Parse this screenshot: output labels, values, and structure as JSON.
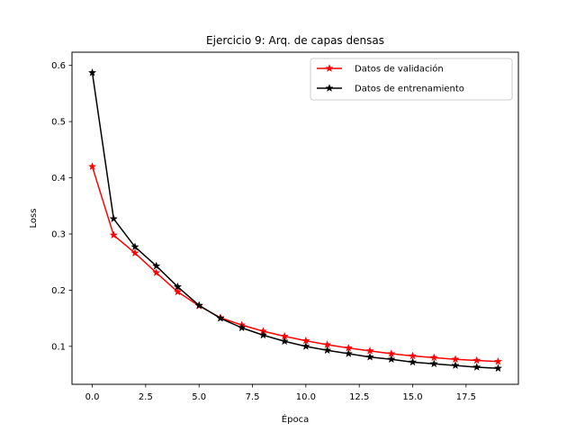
{
  "chart_data": {
    "type": "line",
    "title": "Ejercicio 9: Arq. de capas densas",
    "xlabel": "Época",
    "ylabel": "Loss",
    "xlim": [
      -0.95,
      19.95
    ],
    "ylim": [
      0.0325,
      0.6235
    ],
    "x_ticks": [
      0.0,
      2.5,
      5.0,
      7.5,
      10.0,
      12.5,
      15.0,
      17.5
    ],
    "x_tick_labels": [
      "0.0",
      "2.5",
      "5.0",
      "7.5",
      "10.0",
      "12.5",
      "15.0",
      "17.5"
    ],
    "y_ticks": [
      0.1,
      0.2,
      0.3,
      0.4,
      0.5,
      0.6
    ],
    "y_tick_labels": [
      "0.1",
      "0.2",
      "0.3",
      "0.4",
      "0.5",
      "0.6"
    ],
    "grid": false,
    "legend_position": "upper right",
    "x": [
      0,
      1,
      2,
      3,
      4,
      5,
      6,
      7,
      8,
      9,
      10,
      11,
      12,
      13,
      14,
      15,
      16,
      17,
      18,
      19
    ],
    "series": [
      {
        "name": "Datos de validación",
        "color": "#ff0000",
        "marker": "star",
        "values": [
          0.42,
          0.298,
          0.266,
          0.231,
          0.197,
          0.172,
          0.151,
          0.138,
          0.127,
          0.118,
          0.11,
          0.103,
          0.097,
          0.092,
          0.087,
          0.083,
          0.08,
          0.077,
          0.075,
          0.073
        ]
      },
      {
        "name": "Datos de entrenamiento",
        "color": "#000000",
        "marker": "star",
        "values": [
          0.587,
          0.327,
          0.277,
          0.243,
          0.206,
          0.173,
          0.15,
          0.133,
          0.12,
          0.109,
          0.1,
          0.093,
          0.087,
          0.081,
          0.077,
          0.072,
          0.069,
          0.066,
          0.063,
          0.061
        ]
      }
    ]
  }
}
